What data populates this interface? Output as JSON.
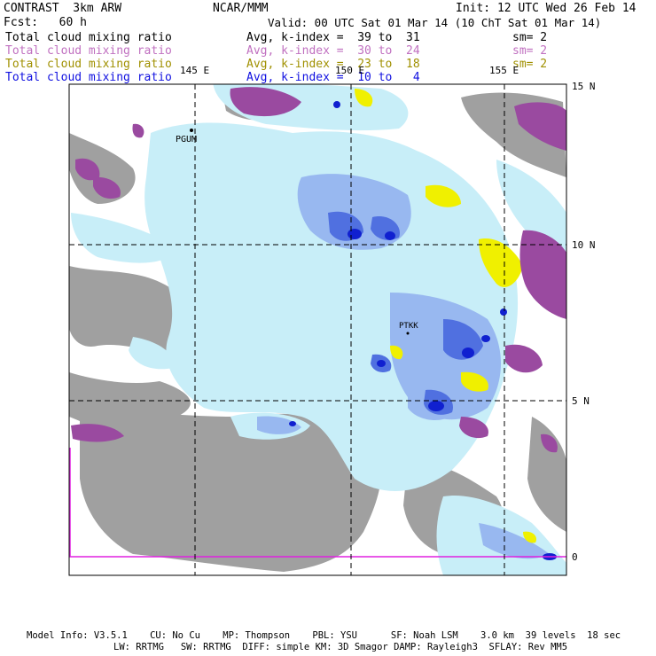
{
  "header": {
    "model_name": "CONTRAST  3km ARW",
    "org": "NCAR/MMM",
    "init": "Init: 12 UTC Wed 26 Feb 14",
    "forecast": "Fcst:   60 h",
    "valid": "Valid: 00 UTC Sat 01 Mar 14 (10 ChT Sat 01 Mar 14)"
  },
  "fields": [
    {
      "name": "Total cloud mixing ratio",
      "avg": "Avg, k-index =  39 to  31",
      "sm": "sm= 2",
      "color": "#000000"
    },
    {
      "name": "Total cloud mixing ratio",
      "avg": "Avg, k-index =  30 to  24",
      "sm": "sm= 2",
      "color": "#c070c0"
    },
    {
      "name": "Total cloud mixing ratio",
      "avg": "Avg, k-index =  23 to  18",
      "sm": "sm= 2",
      "color": "#a09000"
    },
    {
      "name": "Total cloud mixing ratio",
      "avg": "Avg, k-index =  10 to   4",
      "sm": "",
      "color": "#1010e0"
    }
  ],
  "map": {
    "lon_labels": [
      "145 E",
      "150 E",
      "155 E"
    ],
    "lat_labels": [
      "15 N",
      "10 N",
      "5 N",
      "0"
    ],
    "stations": [
      "PGUM",
      "PTKK"
    ],
    "colors": {
      "land": "#a0a0a0",
      "cloud_light": "#c8eef8",
      "cloud_mid": "#98b8f0",
      "cloud_blue": "#5070e0",
      "cloud_dark": "#1020d0",
      "purple": "#9a4aa0",
      "yellow": "#f0f000",
      "magenta_line": "#e020e0"
    }
  },
  "footer": {
    "line1": "Model Info: V3.5.1    CU: No Cu    MP: Thompson    PBL: YSU      SF: Noah LSM    3.0 km  39 levels  18 sec",
    "line2": "LW: RRTMG   SW: RRTMG  DIFF: simple KM: 3D Smagor DAMP: Rayleigh3  SFLAY: Rev MM5"
  }
}
